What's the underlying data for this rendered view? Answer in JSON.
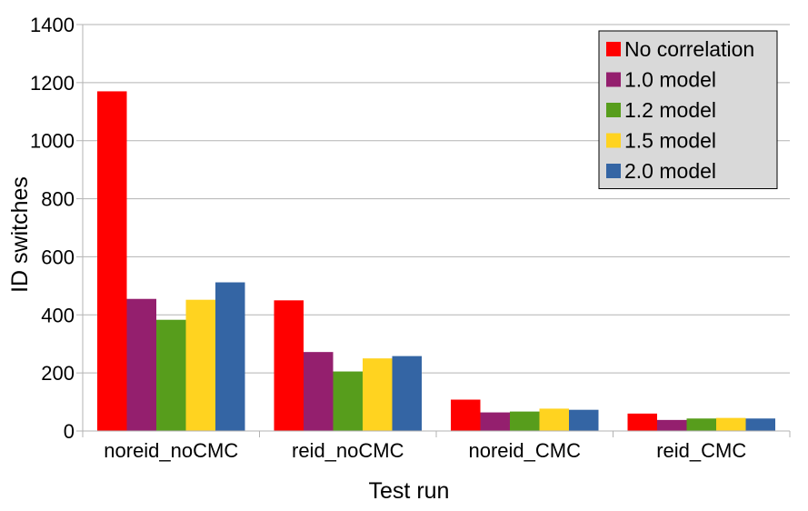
{
  "chart_data": {
    "type": "bar",
    "title": "",
    "xlabel": "Test run",
    "ylabel": "ID switches",
    "ylim": [
      0,
      1400
    ],
    "yticks": [
      "0",
      "200",
      "400",
      "600",
      "800",
      "1000",
      "1200",
      "1400"
    ],
    "grid": true,
    "legend_position": "top-right",
    "categories": [
      "noreid_noCMC",
      "reid_noCMC",
      "noreid_CMC",
      "reid_CMC"
    ],
    "series": [
      {
        "name": "No correlation",
        "color": "#ff0000",
        "values": [
          1170,
          450,
          108,
          60
        ]
      },
      {
        "name": "1.0 model",
        "color": "#941f6e",
        "values": [
          455,
          272,
          64,
          38
        ]
      },
      {
        "name": "1.2 model",
        "color": "#579d1c",
        "values": [
          383,
          205,
          67,
          43
        ]
      },
      {
        "name": "1.5 model",
        "color": "#ffd320",
        "values": [
          452,
          250,
          77,
          45
        ]
      },
      {
        "name": "2.0 model",
        "color": "#3465a4",
        "values": [
          512,
          258,
          73,
          43
        ]
      }
    ]
  }
}
